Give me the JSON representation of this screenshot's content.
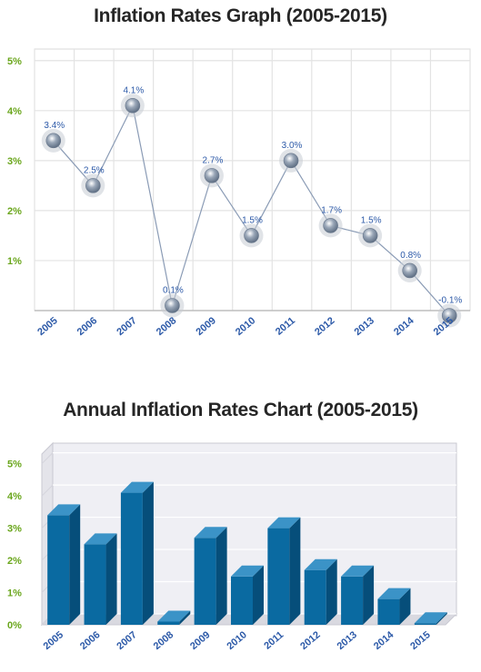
{
  "chart_data": [
    {
      "type": "line",
      "title": "Inflation Rates Graph (2005-2015)",
      "xlabel": "",
      "ylabel": "",
      "categories": [
        "2005",
        "2006",
        "2007",
        "2008",
        "2009",
        "2010",
        "2011",
        "2012",
        "2013",
        "2014",
        "2015"
      ],
      "values": [
        3.4,
        2.5,
        4.1,
        0.1,
        2.7,
        1.5,
        3.0,
        1.7,
        1.5,
        0.8,
        -0.1
      ],
      "data_labels": [
        "3.4%",
        "2.5%",
        "4.1%",
        "0.1%",
        "2.7%",
        "1.5%",
        "3.0%",
        "1.7%",
        "1.5%",
        "0.8%",
        "-0.1%"
      ],
      "y_ticks": [
        "1%",
        "2%",
        "3%",
        "4%",
        "5%"
      ],
      "ylim": [
        0,
        5
      ],
      "grid": true,
      "colors": {
        "line": "#8a9bb5",
        "marker": "#5f6f84",
        "halo": "#c7ccd3",
        "label": "#2d5aa8",
        "ytick": "#6aa61c"
      }
    },
    {
      "type": "bar",
      "title": "Annual Inflation Rates Chart (2005-2015)",
      "xlabel": "",
      "ylabel": "",
      "categories": [
        "2005",
        "2006",
        "2007",
        "2008",
        "2009",
        "2010",
        "2011",
        "2012",
        "2013",
        "2014",
        "2015"
      ],
      "values": [
        3.4,
        2.5,
        4.1,
        0.1,
        2.7,
        1.5,
        3.0,
        1.7,
        1.5,
        0.8,
        -0.1
      ],
      "y_ticks": [
        "0%",
        "1%",
        "2%",
        "3%",
        "4%",
        "5%"
      ],
      "ylim": [
        0,
        5
      ],
      "grid": true,
      "colors": {
        "bar_front": "#0a6aa1",
        "bar_top": "#3b93c7",
        "bar_side": "#064e7a",
        "ytick": "#6aa61c",
        "xtick": "#2d5aa8"
      }
    }
  ]
}
